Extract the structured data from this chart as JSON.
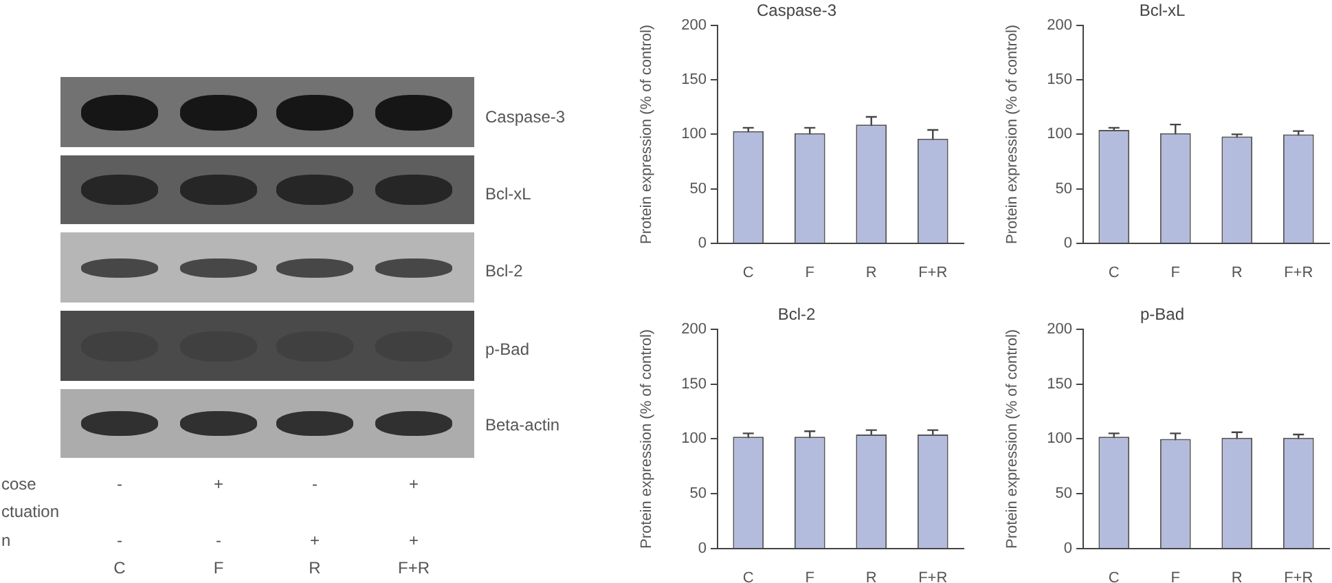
{
  "chart_data": [
    {
      "type": "other",
      "annotations": [
        "Caspase-3",
        "Bcl-xL",
        "Bcl-2",
        "p-Bad",
        "Beta-actin",
        "cose",
        "-",
        "+",
        "-",
        "+",
        "ctuation",
        "n",
        "-",
        "-",
        "+",
        "+",
        "C",
        "F",
        "R",
        "F+R"
      ]
    },
    {
      "type": "bar",
      "title": "Caspase-3",
      "ylabel": "Protein expression (% of control)",
      "categories": [
        "C",
        "F",
        "R",
        "F+R"
      ],
      "values": [
        103,
        101,
        109,
        96
      ],
      "errors": [
        3,
        5,
        7,
        8
      ],
      "color": "#b4bcde",
      "ylim": [
        0,
        200
      ],
      "yticks": [
        0,
        50,
        100,
        150,
        200
      ]
    },
    {
      "type": "bar",
      "title": "Bcl-xL",
      "ylabel": "Protein expression (% of control)",
      "categories": [
        "C",
        "F",
        "R",
        "F+R"
      ],
      "values": [
        104,
        101,
        98,
        100
      ],
      "errors": [
        2,
        8,
        2,
        3
      ],
      "color": "#b4bcde",
      "ylim": [
        0,
        200
      ],
      "yticks": [
        0,
        50,
        100,
        150,
        200
      ]
    },
    {
      "type": "bar",
      "title": "Bcl-2",
      "ylabel": "Protein expression (% of control)",
      "categories": [
        "C",
        "F",
        "R",
        "F+R"
      ],
      "values": [
        102,
        102,
        104,
        104
      ],
      "errors": [
        3,
        5,
        4,
        4
      ],
      "color": "#b4bcde",
      "ylim": [
        0,
        200
      ],
      "yticks": [
        0,
        50,
        100,
        150,
        200
      ]
    },
    {
      "type": "bar",
      "title": "p-Bad",
      "ylabel": "Protein expression (% of control)",
      "categories": [
        "C",
        "F",
        "R",
        "F+R"
      ],
      "values": [
        102,
        100,
        101,
        101
      ],
      "errors": [
        3,
        5,
        5,
        3
      ],
      "color": "#b4bcde",
      "ylim": [
        0,
        200
      ],
      "yticks": [
        0,
        50,
        100,
        150,
        200
      ]
    }
  ]
}
